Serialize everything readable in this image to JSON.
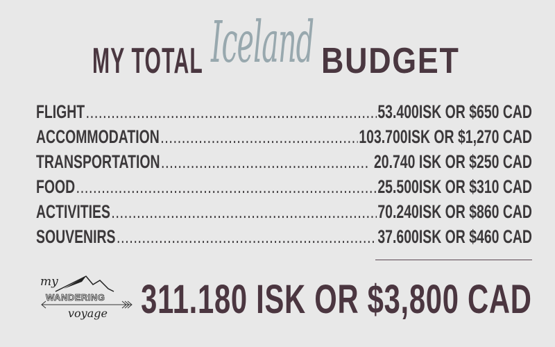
{
  "title": {
    "part1": "MY TOTAL",
    "script": "Iceland",
    "part2": "BUDGET"
  },
  "items": [
    {
      "label": "FLIGHT",
      "value": "53.400ISK OR $650 CAD"
    },
    {
      "label": "ACCOMMODATION",
      "value": "103.700ISK OR $1,270 CAD"
    },
    {
      "label": "TRANSPORTATION",
      "value": " 20.740 ISK OR $250 CAD"
    },
    {
      "label": "FOOD",
      "value": "25.500ISK OR $310 CAD"
    },
    {
      "label": "ACTIVITIES",
      "value": "70.240ISK OR $860 CAD"
    },
    {
      "label": "SOUVENIRS",
      "value": "37.600ISK OR $460 CAD"
    }
  ],
  "total": "311.180 ISK OR $3,800 CAD",
  "logo": {
    "my": "my",
    "wandering": "WANDERING",
    "voyage": "voyage"
  },
  "colors": {
    "background": "#e8e8e8",
    "title": "#4a3740",
    "script": "#98a8ae",
    "text": "#3b383a"
  }
}
